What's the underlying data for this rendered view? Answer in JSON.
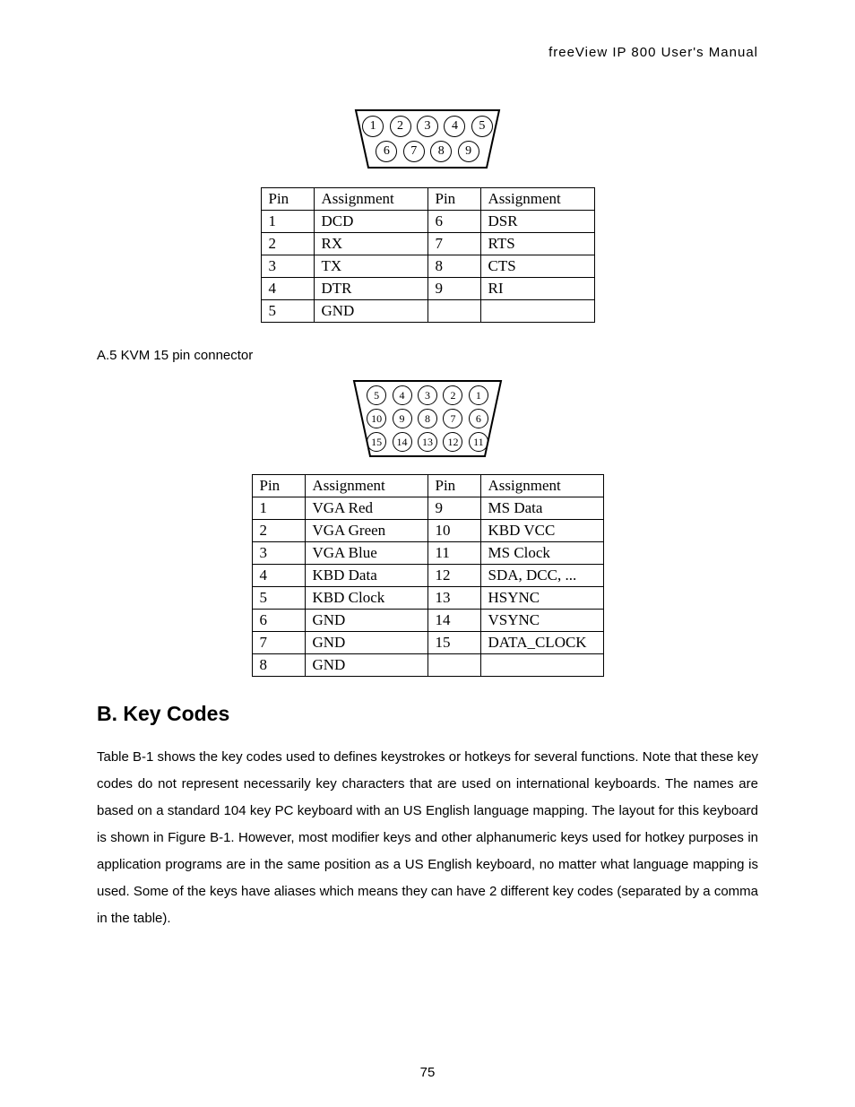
{
  "header": "freeView IP 800 User's Manual",
  "connector9": {
    "row1": [
      "1",
      "2",
      "3",
      "4",
      "5"
    ],
    "row2": [
      "6",
      "7",
      "8",
      "9"
    ],
    "table": {
      "headers": [
        "Pin",
        "Assignment",
        "Pin",
        "Assignment"
      ],
      "rows": [
        [
          "1",
          "DCD",
          "6",
          "DSR"
        ],
        [
          "2",
          "RX",
          "7",
          "RTS"
        ],
        [
          "3",
          "TX",
          "8",
          "CTS"
        ],
        [
          "4",
          "DTR",
          "9",
          "RI"
        ],
        [
          "5",
          "GND",
          "",
          ""
        ]
      ]
    }
  },
  "section_a5": "A.5 KVM 15 pin connector",
  "connector15": {
    "row1": [
      "5",
      "4",
      "3",
      "2",
      "1"
    ],
    "row2": [
      "10",
      "9",
      "8",
      "7",
      "6"
    ],
    "row3": [
      "15",
      "14",
      "13",
      "12",
      "11"
    ],
    "table": {
      "headers": [
        "Pin",
        "Assignment",
        "Pin",
        "Assignment"
      ],
      "rows": [
        [
          "1",
          "VGA Red",
          "9",
          "MS Data"
        ],
        [
          "2",
          "VGA Green",
          "10",
          "KBD VCC"
        ],
        [
          "3",
          "VGA Blue",
          "11",
          "MS Clock"
        ],
        [
          "4",
          "KBD Data",
          "12",
          "SDA, DCC, ..."
        ],
        [
          "5",
          "KBD Clock",
          "13",
          "HSYNC"
        ],
        [
          "6",
          "GND",
          "14",
          "VSYNC"
        ],
        [
          "7",
          "GND",
          "15",
          "DATA_CLOCK"
        ],
        [
          "8",
          "GND",
          "",
          ""
        ]
      ]
    }
  },
  "section_b_title": "B.  Key Codes",
  "section_b_body": "Table B-1 shows the key codes used to defines keystrokes or hotkeys for several functions. Note that these key codes do not represent necessarily key characters that are used on international keyboards. The names are based on a standard 104 key PC keyboard with an US English language mapping. The layout for this keyboard is shown in Figure B-1. However, most modifier keys and other alphanumeric keys used for hotkey purposes in application programs are in the same position as a US English keyboard, no matter what language mapping is used. Some of the keys have aliases which means they can have 2 different key codes (separated by a comma in the table).",
  "page_number": "75"
}
